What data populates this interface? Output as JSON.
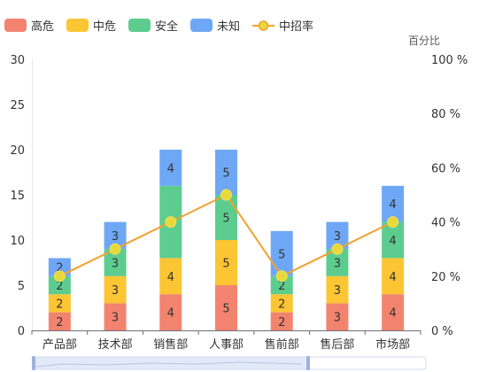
{
  "chart_data": {
    "type": "bar",
    "stacked": true,
    "categories": [
      "产品部",
      "技术部",
      "销售部",
      "人事部",
      "售前部",
      "售后部",
      "市场部"
    ],
    "series": [
      {
        "name": "高危",
        "type": "bar",
        "color": "#f2846f",
        "values": [
          2,
          3,
          4,
          5,
          2,
          3,
          4
        ]
      },
      {
        "name": "中危",
        "type": "bar",
        "color": "#fcc533",
        "values": [
          2,
          3,
          4,
          5,
          2,
          3,
          4
        ]
      },
      {
        "name": "安全",
        "type": "bar",
        "color": "#5ccd8f",
        "values": [
          2,
          3,
          8,
          5,
          2,
          3,
          4
        ]
      },
      {
        "name": "未知",
        "type": "bar",
        "color": "#6ea7f5",
        "values": [
          2,
          3,
          4,
          5,
          5,
          3,
          4
        ]
      },
      {
        "name": "中招率",
        "type": "line",
        "color": "#f4a12e",
        "point_color": "#e8d93a",
        "axis": "right",
        "values": [
          20,
          30,
          40,
          50,
          20,
          30,
          40
        ]
      }
    ],
    "bar_labels": [
      [
        "2",
        "3",
        "4",
        "5",
        "2",
        "3",
        "4"
      ],
      [
        "2",
        "3",
        "4",
        "5",
        "2",
        "3",
        "4"
      ],
      [
        "2",
        "3",
        "",
        "5",
        "2",
        "3",
        "4"
      ],
      [
        "2",
        "3",
        "4",
        "5",
        "5",
        "3",
        "4"
      ]
    ],
    "y_left": {
      "min": 0,
      "max": 30,
      "ticks": [
        "0",
        "5",
        "10",
        "15",
        "20",
        "25",
        "30"
      ]
    },
    "y_right": {
      "min": 0,
      "max": 100,
      "ticks": [
        "0 %",
        "20 %",
        "40 %",
        "60 %",
        "80 %",
        "100 %"
      ],
      "unit_label": "百分比"
    },
    "legend": {
      "position": "top-left",
      "items": [
        "高危",
        "中危",
        "安全",
        "未知",
        "中招率"
      ]
    },
    "grid": false
  }
}
